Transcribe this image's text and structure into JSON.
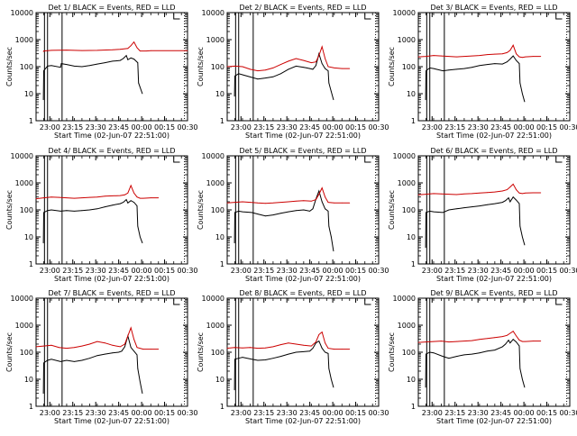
{
  "figure": {
    "x_label": "Start Time (02-Jun-07 22:51:00)",
    "y_label": "Counts/sec",
    "x_ticks": [
      "23:00",
      "23:15",
      "23:30",
      "23:45",
      "00:00",
      "00:15",
      "00:30"
    ],
    "y_ticks": [
      "1",
      "10",
      "100",
      "1000",
      "10000"
    ]
  },
  "chart_data": [
    {
      "type": "line",
      "title": "Det 1/ BLACK = Events, RED = LLD",
      "x_unit": "minutes after 22:51",
      "ylim": [
        1,
        10000
      ],
      "yscale": "log",
      "xlim": [
        0,
        99
      ],
      "gates": [
        5.5,
        7.5,
        17.0
      ],
      "series": [
        {
          "name": "BLACK = Events",
          "color": "#000000",
          "x": [
            4.8,
            5.0,
            7.5,
            10,
            16,
            16.5,
            20,
            25,
            30,
            35,
            40,
            45,
            50,
            55,
            57,
            59,
            60,
            62,
            64,
            66.5,
            67,
            69.5
          ],
          "y": [
            6,
            70,
            105,
            110,
            95,
            130,
            120,
            105,
            100,
            110,
            125,
            140,
            160,
            170,
            200,
            260,
            180,
            210,
            190,
            140,
            25,
            10
          ]
        },
        {
          "name": "RED = LLD",
          "color": "#cc0000",
          "x": [
            4.8,
            5.0,
            10,
            20,
            30,
            40,
            50,
            55,
            60,
            62,
            64,
            66,
            68,
            72,
            75,
            99
          ],
          "y": [
            360,
            380,
            400,
            410,
            395,
            400,
            420,
            440,
            470,
            600,
            820,
            500,
            380,
            380,
            390,
            390
          ]
        }
      ]
    },
    {
      "type": "line",
      "title": "Det 2/ BLACK = Events, RED = LLD",
      "x_unit": "minutes after 22:51",
      "ylim": [
        1,
        10000
      ],
      "yscale": "log",
      "xlim": [
        0,
        99
      ],
      "gates": [
        5.5,
        7.5,
        17.0
      ],
      "series": [
        {
          "name": "BLACK = Events",
          "color": "#000000",
          "x": [
            4.8,
            5.0,
            7.5,
            10,
            16,
            20,
            25,
            30,
            35,
            40,
            45,
            50,
            52,
            54,
            56,
            58,
            60,
            62,
            64,
            66,
            66.5,
            68,
            69.5
          ],
          "y": [
            8,
            45,
            55,
            50,
            40,
            35,
            38,
            42,
            55,
            80,
            105,
            95,
            90,
            85,
            80,
            110,
            300,
            130,
            85,
            70,
            25,
            12,
            6
          ]
        },
        {
          "name": "RED = LLD",
          "color": "#cc0000",
          "x": [
            0,
            5,
            10,
            15,
            20,
            25,
            30,
            35,
            40,
            45,
            50,
            55,
            58,
            60,
            62,
            64,
            66,
            70,
            75,
            80
          ],
          "y": [
            100,
            105,
            100,
            80,
            70,
            75,
            90,
            120,
            160,
            200,
            170,
            140,
            150,
            260,
            550,
            200,
            100,
            90,
            85,
            85
          ]
        }
      ]
    },
    {
      "type": "line",
      "title": "Det 3/ BLACK = Events, RED = LLD",
      "x_unit": "minutes after 22:51",
      "ylim": [
        1,
        10000
      ],
      "yscale": "log",
      "xlim": [
        0,
        99
      ],
      "gates": [
        5.5,
        7.5,
        17.0
      ],
      "series": [
        {
          "name": "BLACK = Events",
          "color": "#000000",
          "x": [
            4.8,
            5.0,
            7.5,
            10,
            16,
            20,
            25,
            30,
            35,
            40,
            45,
            50,
            55,
            58,
            60,
            62,
            64,
            66,
            66.5,
            68,
            69.5
          ],
          "y": [
            6,
            70,
            90,
            85,
            70,
            75,
            80,
            85,
            95,
            110,
            120,
            130,
            125,
            150,
            190,
            250,
            170,
            130,
            25,
            10,
            5
          ]
        },
        {
          "name": "RED = LLD",
          "color": "#cc0000",
          "x": [
            0,
            5,
            10,
            15,
            20,
            25,
            30,
            35,
            40,
            45,
            50,
            55,
            58,
            60,
            62,
            64,
            66,
            68,
            70,
            75,
            80
          ],
          "y": [
            230,
            240,
            260,
            250,
            240,
            230,
            240,
            250,
            260,
            280,
            290,
            300,
            330,
            400,
            620,
            300,
            230,
            220,
            230,
            240,
            240
          ]
        }
      ]
    },
    {
      "type": "line",
      "title": "Det 4/ BLACK = Events, RED = LLD",
      "x_unit": "minutes after 22:51",
      "ylim": [
        1,
        10000
      ],
      "yscale": "log",
      "xlim": [
        0,
        99
      ],
      "gates": [
        5.5,
        7.5,
        17.0
      ],
      "series": [
        {
          "name": "BLACK = Events",
          "color": "#000000",
          "x": [
            4.8,
            5.0,
            7.5,
            10,
            16,
            20,
            25,
            30,
            35,
            40,
            45,
            50,
            55,
            57,
            59,
            60,
            62,
            64,
            66,
            66.5,
            68,
            69.5
          ],
          "y": [
            6,
            80,
            95,
            100,
            90,
            95,
            90,
            95,
            100,
            110,
            130,
            150,
            170,
            190,
            240,
            180,
            220,
            190,
            140,
            25,
            10,
            6
          ]
        },
        {
          "name": "RED = LLD",
          "color": "#cc0000",
          "x": [
            0,
            5,
            10,
            15,
            20,
            25,
            30,
            35,
            40,
            45,
            50,
            55,
            58,
            60,
            62,
            64,
            66,
            68,
            70,
            75,
            80
          ],
          "y": [
            260,
            280,
            300,
            290,
            280,
            270,
            280,
            290,
            300,
            320,
            330,
            340,
            360,
            420,
            800,
            420,
            300,
            270,
            270,
            280,
            280
          ]
        }
      ]
    },
    {
      "type": "line",
      "title": "Det 5/ BLACK = Events, RED = LLD",
      "x_unit": "minutes after 22:51",
      "ylim": [
        1,
        10000
      ],
      "yscale": "log",
      "xlim": [
        0,
        99
      ],
      "gates": [
        5.5,
        7.5,
        17.0
      ],
      "series": [
        {
          "name": "BLACK = Events",
          "color": "#000000",
          "x": [
            4.8,
            5.0,
            7.5,
            10,
            16,
            20,
            25,
            30,
            35,
            40,
            45,
            50,
            54,
            56,
            58,
            60,
            62,
            64,
            66,
            66.5,
            68,
            69.5
          ],
          "y": [
            6,
            80,
            90,
            85,
            80,
            70,
            60,
            65,
            75,
            85,
            95,
            100,
            90,
            110,
            250,
            500,
            200,
            110,
            90,
            25,
            10,
            3
          ]
        },
        {
          "name": "RED = LLD",
          "color": "#cc0000",
          "x": [
            0,
            5,
            10,
            15,
            20,
            25,
            30,
            35,
            40,
            45,
            50,
            55,
            58,
            60,
            62,
            64,
            66,
            70,
            75,
            80
          ],
          "y": [
            180,
            190,
            200,
            190,
            180,
            175,
            180,
            190,
            200,
            210,
            220,
            210,
            240,
            380,
            650,
            300,
            190,
            180,
            180,
            180
          ]
        }
      ]
    },
    {
      "type": "line",
      "title": "Det 6/ BLACK = Events, RED = LLD",
      "x_unit": "minutes after 22:51",
      "ylim": [
        1,
        10000
      ],
      "yscale": "log",
      "xlim": [
        0,
        99
      ],
      "gates": [
        5.5,
        7.5,
        17.0
      ],
      "series": [
        {
          "name": "BLACK = Events",
          "color": "#000000",
          "x": [
            4.8,
            5.0,
            7.5,
            10,
            16,
            20,
            25,
            30,
            35,
            40,
            45,
            50,
            55,
            57,
            59,
            60,
            62,
            64,
            66,
            66.5,
            68,
            69.5
          ],
          "y": [
            4,
            80,
            90,
            85,
            80,
            100,
            110,
            120,
            130,
            140,
            155,
            170,
            190,
            220,
            280,
            200,
            300,
            230,
            170,
            25,
            10,
            5
          ]
        },
        {
          "name": "RED = LLD",
          "color": "#cc0000",
          "x": [
            0,
            5,
            10,
            15,
            20,
            25,
            30,
            35,
            40,
            45,
            50,
            55,
            58,
            60,
            62,
            64,
            66,
            68,
            70,
            75,
            80
          ],
          "y": [
            360,
            380,
            400,
            390,
            380,
            370,
            390,
            400,
            420,
            440,
            460,
            500,
            560,
            700,
            900,
            560,
            420,
            400,
            420,
            430,
            430
          ]
        }
      ]
    },
    {
      "type": "line",
      "title": "Det 7/ BLACK = Events, RED = LLD",
      "x_unit": "minutes after 22:51",
      "ylim": [
        1,
        10000
      ],
      "yscale": "log",
      "xlim": [
        0,
        99
      ],
      "gates": [
        5.5,
        7.5,
        17.0
      ],
      "series": [
        {
          "name": "BLACK = Events",
          "color": "#000000",
          "x": [
            4.8,
            5.0,
            7.5,
            10,
            16,
            20,
            25,
            30,
            35,
            40,
            45,
            50,
            54,
            56,
            58,
            60,
            62,
            64,
            66,
            66.5,
            68,
            69.5
          ],
          "y": [
            3,
            40,
            50,
            55,
            45,
            50,
            45,
            50,
            60,
            75,
            85,
            95,
            100,
            110,
            160,
            400,
            150,
            110,
            80,
            25,
            8,
            3
          ]
        },
        {
          "name": "RED = LLD",
          "color": "#cc0000",
          "x": [
            0,
            5,
            10,
            15,
            20,
            25,
            30,
            35,
            40,
            45,
            50,
            55,
            58,
            60,
            62,
            64,
            66,
            70,
            75,
            80
          ],
          "y": [
            160,
            170,
            180,
            150,
            140,
            150,
            170,
            200,
            250,
            220,
            180,
            160,
            200,
            400,
            800,
            300,
            150,
            130,
            130,
            130
          ]
        }
      ]
    },
    {
      "type": "line",
      "title": "Det 8/ BLACK = Events, RED = LLD",
      "x_unit": "minutes after 22:51",
      "ylim": [
        1,
        10000
      ],
      "yscale": "log",
      "xlim": [
        0,
        99
      ],
      "gates": [
        5.5,
        7.5,
        17.0
      ],
      "series": [
        {
          "name": "BLACK = Events",
          "color": "#000000",
          "x": [
            4.8,
            5.0,
            7.5,
            10,
            16,
            20,
            25,
            30,
            35,
            40,
            45,
            50,
            54,
            56,
            58,
            60,
            62,
            64,
            66,
            66.5,
            68,
            69.5
          ],
          "y": [
            4,
            55,
            60,
            65,
            55,
            50,
            52,
            60,
            70,
            85,
            100,
            105,
            110,
            140,
            220,
            260,
            140,
            100,
            90,
            25,
            10,
            5
          ]
        },
        {
          "name": "RED = LLD",
          "color": "#cc0000",
          "x": [
            0,
            5,
            10,
            15,
            20,
            25,
            30,
            35,
            40,
            45,
            50,
            55,
            58,
            60,
            62,
            64,
            66,
            70,
            75,
            80
          ],
          "y": [
            140,
            150,
            145,
            150,
            140,
            145,
            160,
            190,
            220,
            200,
            180,
            170,
            240,
            450,
            560,
            220,
            140,
            130,
            130,
            130
          ]
        }
      ]
    },
    {
      "type": "line",
      "title": "Det 9/ BLACK = Events, RED = LLD",
      "x_unit": "minutes after 22:51",
      "ylim": [
        1,
        10000
      ],
      "yscale": "log",
      "xlim": [
        0,
        99
      ],
      "gates": [
        5.5,
        7.5,
        17.0
      ],
      "series": [
        {
          "name": "BLACK = Events",
          "color": "#000000",
          "x": [
            4.8,
            5.0,
            7.5,
            10,
            16,
            20,
            25,
            30,
            35,
            40,
            45,
            50,
            55,
            57,
            59,
            60,
            62,
            64,
            66,
            66.5,
            68,
            69.5
          ],
          "y": [
            5,
            85,
            100,
            95,
            70,
            60,
            70,
            80,
            85,
            95,
            110,
            120,
            160,
            200,
            280,
            220,
            300,
            240,
            170,
            25,
            10,
            5
          ]
        },
        {
          "name": "RED = LLD",
          "color": "#cc0000",
          "x": [
            0,
            5,
            10,
            15,
            20,
            25,
            30,
            35,
            40,
            45,
            50,
            55,
            58,
            60,
            62,
            64,
            66,
            68,
            70,
            75,
            80
          ],
          "y": [
            230,
            240,
            250,
            260,
            240,
            250,
            260,
            270,
            300,
            320,
            350,
            380,
            420,
            500,
            600,
            400,
            280,
            250,
            250,
            260,
            260
          ]
        }
      ]
    }
  ]
}
